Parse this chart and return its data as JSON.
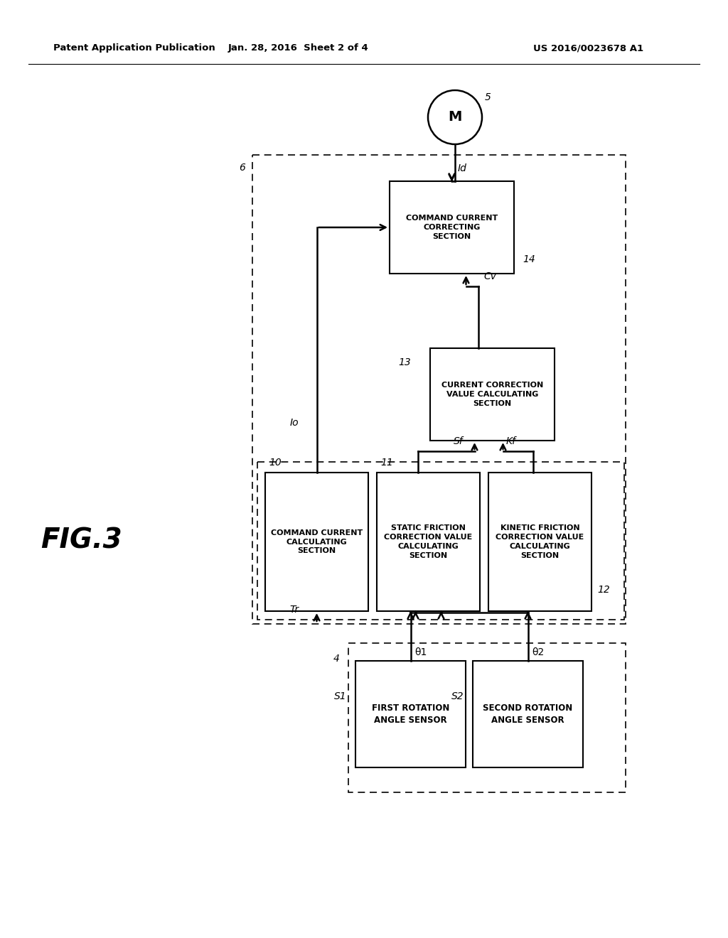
{
  "bg_color": "#ffffff",
  "header_left": "Patent Application Publication",
  "header_mid": "Jan. 28, 2016  Sheet 2 of 4",
  "header_right": "US 2016/0023678 A1",
  "fig_label": "FIG.3",
  "motor_label": "5",
  "motor_symbol": "M",
  "label6": "6",
  "label14": "14",
  "label13": "13",
  "label10": "10",
  "label11": "11",
  "label12": "12",
  "label4": "4",
  "signal_Id": "Id",
  "signal_Io": "Io",
  "signal_Cv": "Cv",
  "signal_Tr": "Tr",
  "signal_Sf": "Sf",
  "signal_Kf": "Kf",
  "signal_theta1": "θ1",
  "signal_theta2": "θ2",
  "signal_S1": "S1",
  "signal_S2": "S2",
  "box_cmd_correct": "COMMAND CURRENT\nCORRECTING\nSECTION",
  "box_curr_calc": "CURRENT CORRECTION\nVALUE CALCULATING\nSECTION",
  "box_cmd_current": "COMMAND CURRENT\nCALCULATING\nSECTION",
  "box_static": "STATIC FRICTION\nCORRECTION VALUE\nCALCULATING\nSECTION",
  "box_kinetic": "KINETIC FRICTION\nCORRECTION VALUE\nCALCULATING\nSECTION",
  "box_sensor1": "FIRST ROTATION\nANGLE SENSOR",
  "box_sensor2": "SECOND ROTATION\nANGLE SENSOR"
}
